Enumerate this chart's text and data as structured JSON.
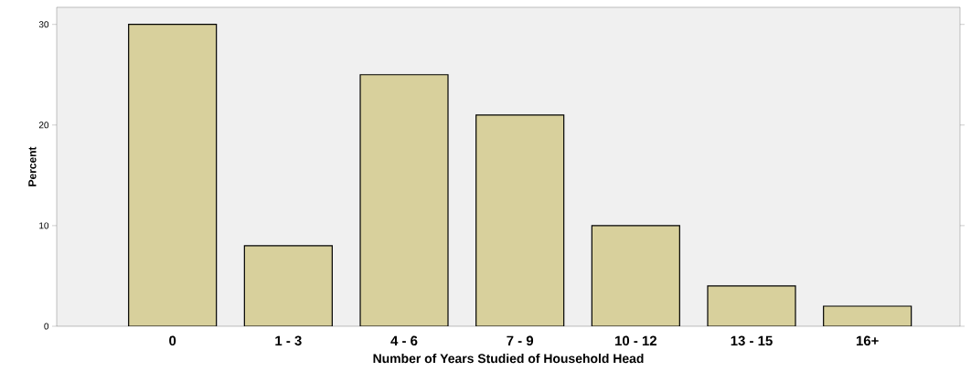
{
  "chart_data": {
    "type": "bar",
    "xlabel": "Number of Years Studied of Household Head",
    "ylabel": "Percent",
    "categories": [
      "0",
      "1 - 3",
      "4 - 6",
      "7 - 9",
      "10 - 12",
      "13 - 15",
      "16+"
    ],
    "values": [
      30,
      8,
      25,
      21,
      10,
      4,
      2
    ],
    "color": "#d8d09c",
    "ylim": [
      0,
      31.7
    ],
    "yticks": [
      0,
      10,
      20,
      30
    ]
  }
}
